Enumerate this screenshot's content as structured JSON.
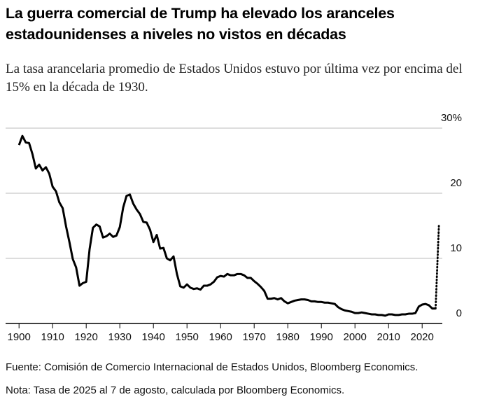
{
  "chart_data": {
    "type": "line",
    "title": "La guerra comercial de Trump ha elevado los aranceles estadounidenses a niveles no vistos en décadas",
    "subtitle": "La tasa arancelaria promedio de Estados Unidos estuvo por última vez por encima del 15% en la década de 1930.",
    "source": "Fuente: Comisión de Comercio Internacional de Estados Unidos, Bloomberg Economics.",
    "note": "Nota: Tasa de 2025 al 7 de agosto, calculada por Bloomberg Economics.",
    "xlim": [
      1896,
      2030
    ],
    "xticks": [
      1900,
      1910,
      1920,
      1930,
      1940,
      1950,
      1960,
      1970,
      1980,
      1990,
      2000,
      2010,
      2020
    ],
    "ylim": [
      0,
      30
    ],
    "yticks": [
      0,
      10,
      20,
      {
        "value": 30,
        "label": "30%"
      }
    ],
    "grid": true,
    "series": [
      {
        "color": "#000000",
        "style": "solid",
        "x": [
          1900,
          1901,
          1902,
          1903,
          1904,
          1905,
          1906,
          1907,
          1908,
          1909,
          1910,
          1911,
          1912,
          1913,
          1914,
          1915,
          1916,
          1917,
          1918,
          1919,
          1920,
          1921,
          1922,
          1923,
          1924,
          1925,
          1926,
          1927,
          1928,
          1929,
          1930,
          1931,
          1932,
          1933,
          1934,
          1935,
          1936,
          1937,
          1938,
          1939,
          1940,
          1941,
          1942,
          1943,
          1944,
          1945,
          1946,
          1947,
          1948,
          1949,
          1950,
          1951,
          1952,
          1953,
          1954,
          1955,
          1956,
          1957,
          1958,
          1959,
          1960,
          1961,
          1962,
          1963,
          1964,
          1965,
          1966,
          1967,
          1968,
          1969,
          1970,
          1971,
          1972,
          1973,
          1974,
          1975,
          1976,
          1977,
          1978,
          1979,
          1980,
          1981,
          1982,
          1983,
          1984,
          1985,
          1986,
          1987,
          1988,
          1989,
          1990,
          1991,
          1992,
          1993,
          1994,
          1995,
          1996,
          1997,
          1998,
          1999,
          2000,
          2001,
          2002,
          2003,
          2004,
          2005,
          2006,
          2007,
          2008,
          2009,
          2010,
          2011,
          2012,
          2013,
          2014,
          2015,
          2016,
          2017,
          2018,
          2019,
          2020,
          2021,
          2022,
          2023,
          2024
        ],
        "values": [
          27.4,
          28.8,
          27.8,
          27.7,
          26,
          23.8,
          24.4,
          23.5,
          24,
          23,
          21,
          20.3,
          18.6,
          17.7,
          14.9,
          12.5,
          9.9,
          8.6,
          5.8,
          6.2,
          6.4,
          11.4,
          14.7,
          15.2,
          14.9,
          13.2,
          13.4,
          13.8,
          13.3,
          13.5,
          14.8,
          17.8,
          19.6,
          19.8,
          18.4,
          17.5,
          16.8,
          15.6,
          15.5,
          14.4,
          12.5,
          13.6,
          11.5,
          11.6,
          10,
          9.7,
          10.3,
          7.6,
          5.7,
          5.5,
          6,
          5.5,
          5.3,
          5.4,
          5.2,
          5.8,
          5.8,
          6,
          6.4,
          7.1,
          7.3,
          7.2,
          7.6,
          7.4,
          7.4,
          7.6,
          7.6,
          7.4,
          7,
          7,
          6.5,
          6.1,
          5.6,
          5,
          3.8,
          3.8,
          3.9,
          3.7,
          3.9,
          3.4,
          3.1,
          3.3,
          3.5,
          3.6,
          3.7,
          3.7,
          3.6,
          3.4,
          3.4,
          3.3,
          3.3,
          3.2,
          3.2,
          3.1,
          3,
          2.5,
          2.2,
          2,
          1.9,
          1.8,
          1.6,
          1.6,
          1.7,
          1.6,
          1.5,
          1.4,
          1.4,
          1.3,
          1.3,
          1.2,
          1.4,
          1.4,
          1.3,
          1.3,
          1.4,
          1.4,
          1.5,
          1.5,
          1.6,
          2.6,
          2.9,
          3,
          2.8,
          2.3,
          2.3
        ]
      },
      {
        "color": "#000000",
        "style": "dotted",
        "x": [
          2024,
          2025
        ],
        "values": [
          2.3,
          15.2
        ]
      }
    ]
  }
}
